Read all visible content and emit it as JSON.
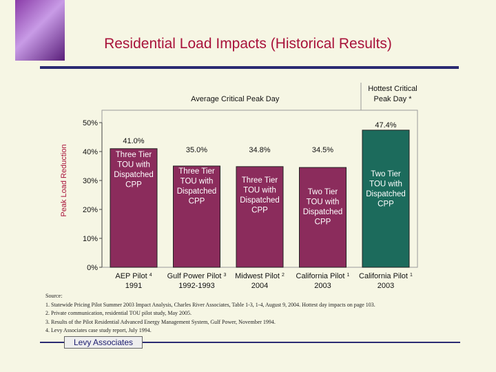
{
  "slide": {
    "title": "Residential Load Impacts (Historical Results)",
    "footer": "Levy Associates",
    "colors": {
      "title": "#a8123a",
      "rule": "#2a2a72",
      "background": "#f6f6e4"
    }
  },
  "chart_data": {
    "type": "bar",
    "ylabel": "Peak Load Reduction",
    "ylim": [
      0,
      50
    ],
    "yticks": [
      "0%",
      "10%",
      "20%",
      "30%",
      "40%",
      "50%"
    ],
    "grid": false,
    "group_labels": [
      {
        "text": "Average Critical Peak Day",
        "categories": [
          0,
          1,
          2,
          3
        ]
      },
      {
        "text": "Hottest Critical Peak Day *",
        "categories": [
          4
        ]
      }
    ],
    "bars": [
      {
        "label_line1": "AEP Pilot ",
        "sup": "4",
        "label_line2": "1991",
        "value": 41.0,
        "value_label": "41.0%",
        "inner_label": [
          "Three Tier",
          "TOU with",
          "Dispatched",
          "CPP"
        ],
        "color": "#8b2c5c"
      },
      {
        "label_line1": "Gulf Power Pilot ",
        "sup": "3",
        "label_line2": "1992-1993",
        "value": 35.0,
        "value_label": "35.0%",
        "inner_label": [
          "Three Tier",
          "TOU with",
          "Dispatched",
          "CPP"
        ],
        "color": "#8b2c5c"
      },
      {
        "label_line1": "Midwest Pilot ",
        "sup": "2",
        "label_line2": "2004",
        "value": 34.8,
        "value_label": "34.8%",
        "inner_label": [
          "Three Tier",
          "TOU with",
          "Dispatched",
          "CPP"
        ],
        "color": "#8b2c5c"
      },
      {
        "label_line1": "California Pilot ",
        "sup": "1",
        "label_line2": "2003",
        "value": 34.5,
        "value_label": "34.5%",
        "inner_label": [
          "Two Tier",
          "TOU with",
          "Dispatched",
          "CPP"
        ],
        "color": "#8b2c5c"
      },
      {
        "label_line1": "California Pilot ",
        "sup": "1",
        "label_line2": "2003",
        "value": 47.4,
        "value_label": "47.4%",
        "inner_label": [
          "Two Tier",
          "TOU with",
          "Dispatched",
          "CPP"
        ],
        "color": "#1c6b5c"
      }
    ]
  },
  "sources": {
    "heading": "Source:",
    "items": [
      "1.  Statewide Pricing Pilot Summer 2003 Impact Analysis, Charles River Associates, Table 1-3, 1-4, August 9, 2004.  Hottest day impacts on page 103.",
      "2.  Private communication, residential TOU pilot study, May 2005.",
      "3.  Results of the Pilot Residential Advanced Energy Management System, Gulf Power, November 1994.",
      "4.  Levy Associates case study report, July 1994."
    ]
  }
}
